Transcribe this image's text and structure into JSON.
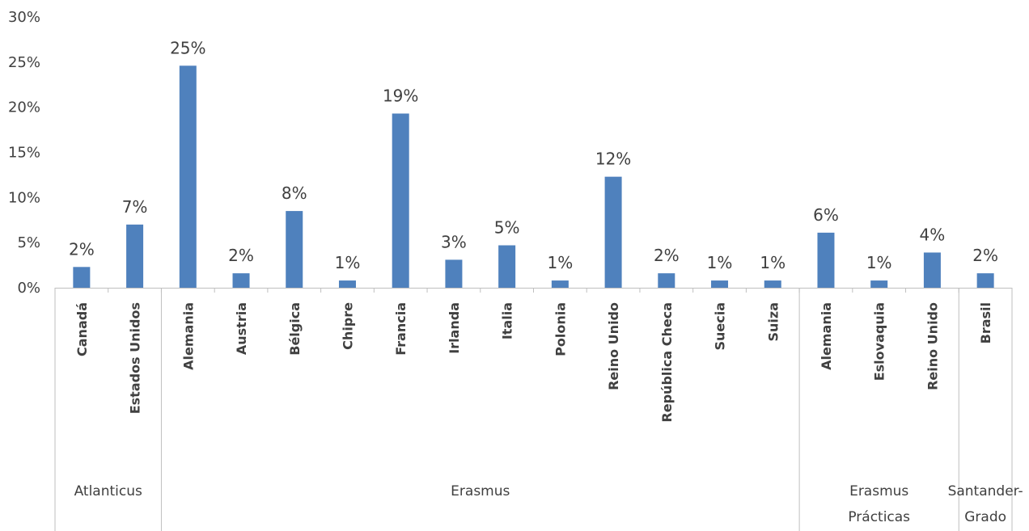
{
  "chart_data": {
    "type": "bar",
    "title": "",
    "xlabel": "",
    "ylabel": "",
    "ylim": [
      0,
      30
    ],
    "y_ticks": [
      "0%",
      "5%",
      "10%",
      "15%",
      "20%",
      "25%",
      "30%"
    ],
    "grid": false,
    "legend": "none",
    "bar_color": "#4F81BD",
    "groups": [
      {
        "name": "Atlanticus",
        "categories": [
          {
            "label": "Canadá",
            "value": 2.3,
            "data_label": "2%"
          },
          {
            "label": "Estados Unidos",
            "value": 7.0,
            "data_label": "7%"
          }
        ]
      },
      {
        "name": "Erasmus",
        "categories": [
          {
            "label": "Alemania",
            "value": 24.6,
            "data_label": "25%"
          },
          {
            "label": "Austria",
            "value": 1.6,
            "data_label": "2%"
          },
          {
            "label": "Bélgica",
            "value": 8.5,
            "data_label": "8%"
          },
          {
            "label": "Chipre",
            "value": 0.8,
            "data_label": "1%"
          },
          {
            "label": "Francia",
            "value": 19.3,
            "data_label": "19%"
          },
          {
            "label": "Irlanda",
            "value": 3.1,
            "data_label": "3%"
          },
          {
            "label": "Italia",
            "value": 4.7,
            "data_label": "5%"
          },
          {
            "label": "Polonia",
            "value": 0.8,
            "data_label": "1%"
          },
          {
            "label": "Reino Unido",
            "value": 12.3,
            "data_label": "12%"
          },
          {
            "label": "República Checa",
            "value": 1.6,
            "data_label": "2%"
          },
          {
            "label": "Suecia",
            "value": 0.8,
            "data_label": "1%"
          },
          {
            "label": "Suiza",
            "value": 0.8,
            "data_label": "1%"
          }
        ]
      },
      {
        "name": "Erasmus Prácticas",
        "name_lines": [
          "Erasmus",
          "Prácticas"
        ],
        "categories": [
          {
            "label": "Alemania",
            "value": 6.1,
            "data_label": "6%"
          },
          {
            "label": "Eslovaquia",
            "value": 0.8,
            "data_label": "1%"
          },
          {
            "label": "Reino Unido",
            "value": 3.9,
            "data_label": "4%"
          }
        ]
      },
      {
        "name": "Santander-Grado",
        "name_lines": [
          "Santander-",
          "Grado"
        ],
        "categories": [
          {
            "label": "Brasil",
            "value": 1.6,
            "data_label": "2%"
          }
        ]
      }
    ]
  }
}
